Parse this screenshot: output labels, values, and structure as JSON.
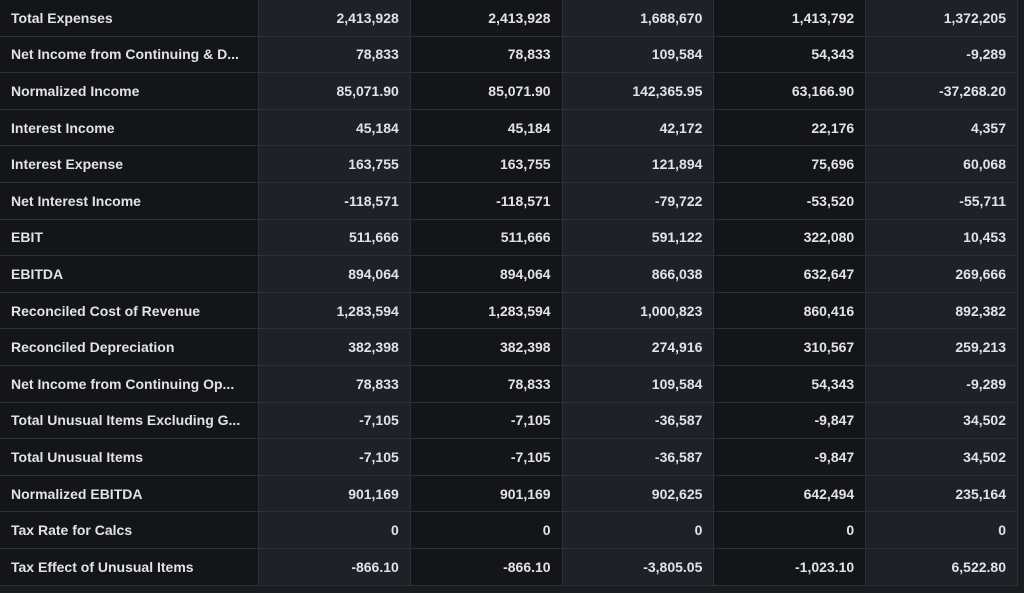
{
  "rows": [
    {
      "label": "Total Expenses",
      "values": [
        "2,413,928",
        "2,413,928",
        "1,688,670",
        "1,413,792",
        "1,372,205"
      ]
    },
    {
      "label": "Net Income from Continuing & D...",
      "values": [
        "78,833",
        "78,833",
        "109,584",
        "54,343",
        "-9,289"
      ]
    },
    {
      "label": "Normalized Income",
      "values": [
        "85,071.90",
        "85,071.90",
        "142,365.95",
        "63,166.90",
        "-37,268.20"
      ]
    },
    {
      "label": "Interest Income",
      "values": [
        "45,184",
        "45,184",
        "42,172",
        "22,176",
        "4,357"
      ]
    },
    {
      "label": "Interest Expense",
      "values": [
        "163,755",
        "163,755",
        "121,894",
        "75,696",
        "60,068"
      ]
    },
    {
      "label": "Net Interest Income",
      "values": [
        "-118,571",
        "-118,571",
        "-79,722",
        "-53,520",
        "-55,711"
      ]
    },
    {
      "label": "EBIT",
      "values": [
        "511,666",
        "511,666",
        "591,122",
        "322,080",
        "10,453"
      ]
    },
    {
      "label": "EBITDA",
      "values": [
        "894,064",
        "894,064",
        "866,038",
        "632,647",
        "269,666"
      ]
    },
    {
      "label": "Reconciled Cost of Revenue",
      "values": [
        "1,283,594",
        "1,283,594",
        "1,000,823",
        "860,416",
        "892,382"
      ]
    },
    {
      "label": "Reconciled Depreciation",
      "values": [
        "382,398",
        "382,398",
        "274,916",
        "310,567",
        "259,213"
      ]
    },
    {
      "label": "Net Income from Continuing Op...",
      "values": [
        "78,833",
        "78,833",
        "109,584",
        "54,343",
        "-9,289"
      ]
    },
    {
      "label": "Total Unusual Items Excluding G...",
      "values": [
        "-7,105",
        "-7,105",
        "-36,587",
        "-9,847",
        "34,502"
      ]
    },
    {
      "label": "Total Unusual Items",
      "values": [
        "-7,105",
        "-7,105",
        "-36,587",
        "-9,847",
        "34,502"
      ]
    },
    {
      "label": "Normalized EBITDA",
      "values": [
        "901,169",
        "901,169",
        "902,625",
        "642,494",
        "235,164"
      ]
    },
    {
      "label": "Tax Rate for Calcs",
      "values": [
        "0",
        "0",
        "0",
        "0",
        "0"
      ]
    },
    {
      "label": "Tax Effect of Unusual Items",
      "values": [
        "-866.10",
        "-866.10",
        "-3,805.05",
        "-1,023.10",
        "6,522.80"
      ]
    }
  ]
}
